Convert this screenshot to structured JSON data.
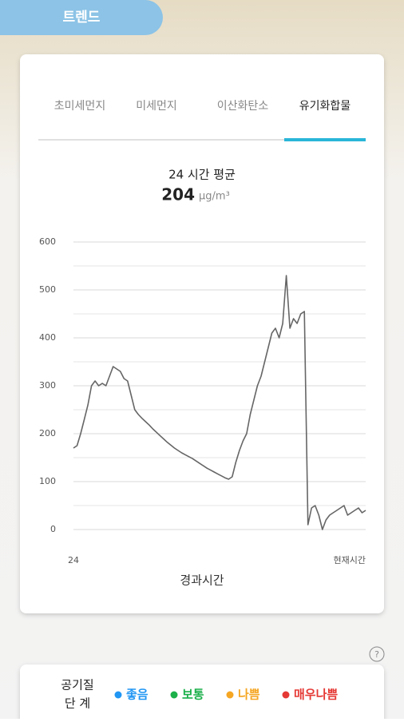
{
  "header": {
    "title": "트렌드"
  },
  "tabs": [
    "초미세먼지",
    "미세먼지",
    "이산화탄소",
    "유기화합물"
  ],
  "active_tab": 3,
  "summary": {
    "label": "24 시간 평균",
    "value": 204,
    "unit": "μg/m³"
  },
  "chart_data": {
    "type": "line",
    "x_labels": [
      "24",
      "현재시간"
    ],
    "x_axis_label": "경과시간",
    "ylim": [
      0,
      600
    ],
    "yticks": [
      0,
      100,
      200,
      300,
      400,
      500,
      600
    ],
    "grid": true,
    "series": [
      {
        "name": "유기화합물",
        "color": "#666666",
        "values": [
          170,
          175,
          200,
          230,
          260,
          300,
          310,
          300,
          305,
          300,
          320,
          340,
          335,
          330,
          315,
          310,
          280,
          250,
          240,
          232,
          225,
          218,
          210,
          203,
          196,
          189,
          182,
          176,
          170,
          165,
          160,
          156,
          152,
          148,
          143,
          138,
          133,
          128,
          124,
          120,
          116,
          112,
          108,
          105,
          110,
          140,
          165,
          185,
          200,
          240,
          270,
          300,
          320,
          350,
          380,
          410,
          420,
          400,
          430,
          530,
          420,
          440,
          430,
          450,
          455,
          10,
          45,
          50,
          30,
          0,
          20,
          30,
          35,
          40,
          45,
          50,
          30,
          35,
          40,
          45,
          35,
          40
        ]
      }
    ]
  },
  "legend": {
    "title_lines": [
      "공기질",
      "단 계"
    ],
    "levels": [
      {
        "name": "좋음",
        "color": "#2196f3"
      },
      {
        "name": "보통",
        "color": "#1bb04a"
      },
      {
        "name": "나쁨",
        "color": "#f5a623"
      },
      {
        "name": "매우나쁨",
        "color": "#e53935"
      }
    ]
  }
}
